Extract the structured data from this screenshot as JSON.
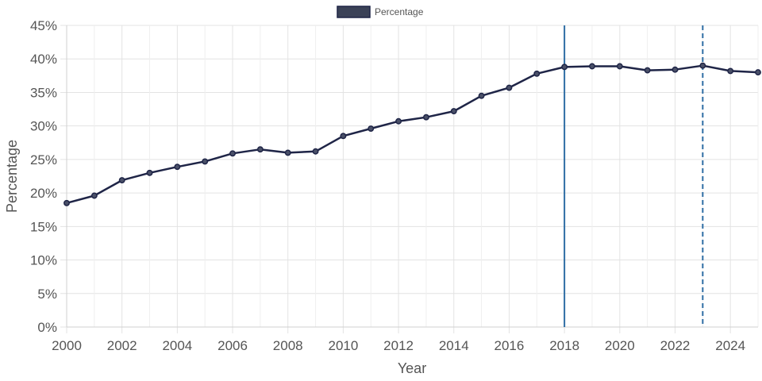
{
  "chart_data": {
    "type": "line",
    "xlabel": "Year",
    "ylabel": "Percentage",
    "xlim": [
      2000,
      2025
    ],
    "ylim": [
      0,
      45
    ],
    "x_ticks": [
      "2000",
      "2002",
      "2004",
      "2006",
      "2008",
      "2010",
      "2012",
      "2014",
      "2016",
      "2018",
      "2020",
      "2022",
      "2024"
    ],
    "y_ticks": [
      "0%",
      "5%",
      "10%",
      "15%",
      "20%",
      "25%",
      "30%",
      "35%",
      "40%",
      "45%"
    ],
    "grid": true,
    "legend_position": "top-center",
    "series": [
      {
        "name": "Percentage",
        "color": "#1f2547",
        "legend_fill": "#3b4257",
        "x": [
          2000,
          2001,
          2002,
          2003,
          2004,
          2005,
          2006,
          2007,
          2008,
          2009,
          2010,
          2011,
          2012,
          2013,
          2014,
          2015,
          2016,
          2017,
          2018,
          2019,
          2020,
          2021,
          2022,
          2023,
          2024,
          2025
        ],
        "values": [
          18.5,
          19.6,
          21.9,
          23.0,
          23.9,
          24.7,
          25.9,
          26.5,
          26.0,
          26.2,
          28.5,
          29.6,
          30.7,
          31.3,
          32.2,
          34.5,
          35.7,
          37.8,
          38.8,
          38.9,
          38.9,
          38.3,
          38.4,
          39.0,
          38.2,
          38.0
        ]
      }
    ],
    "reference_lines": [
      {
        "x": 2018,
        "style": "solid",
        "color": "#2e6da4"
      },
      {
        "x": 2023,
        "style": "dashed",
        "color": "#2e6da4"
      }
    ]
  }
}
